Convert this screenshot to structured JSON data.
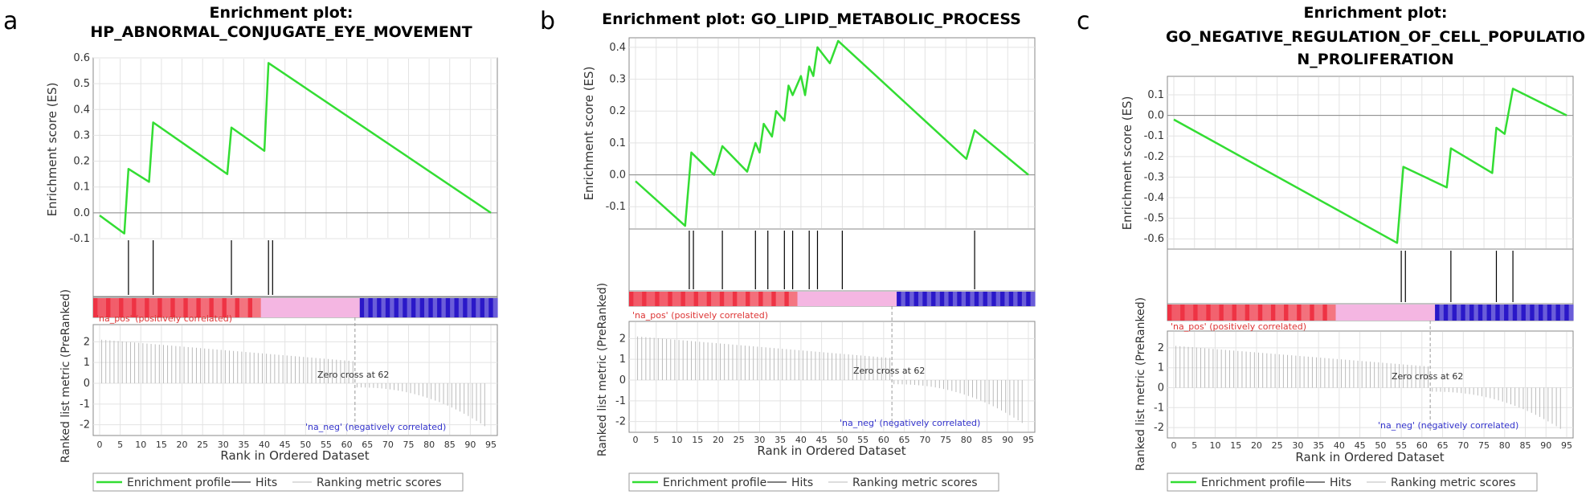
{
  "figure": {
    "x_axis_label": "Rank in Ordered Dataset",
    "es_axis_label": "Enrichment score (ES)",
    "metric_axis_label": "Ranked list metric (PreRanked)",
    "pos_label": "'na_pos' (positively correlated)",
    "neg_label": "'na_neg' (negatively correlated)",
    "legend_profile": "Enrichment profile",
    "legend_hits": "Hits",
    "legend_metric": "Ranking metric scores",
    "colors": {
      "profile": "#33dd33",
      "hits": "#000000",
      "metric": "#bbbbbb",
      "pos": "#ee3344",
      "mid": "#f4b6e2",
      "neg": "#2a18c8",
      "grid": "#e3e3e3"
    }
  },
  "chart_data": [
    {
      "type": "line",
      "panel_label": "a",
      "title_line1": "Enrichment plot:",
      "title_line2": "HP_ABNORMAL_CONJUGATE_EYE_MOVEMENT",
      "zero_cross_text": "Zero cross at 62",
      "zero_cross": 62,
      "n_genes": 94,
      "x_ticks": [
        "0",
        "5",
        "10",
        "15",
        "20",
        "25",
        "30",
        "35",
        "40",
        "45",
        "50",
        "55",
        "60",
        "65",
        "70",
        "75",
        "80",
        "85",
        "90",
        "95"
      ],
      "es_ticks": [
        "-0.1",
        "0.0",
        "0.1",
        "0.2",
        "0.3",
        "0.4",
        "0.5",
        "0.6"
      ],
      "es_tick_values": [
        -0.1,
        0.0,
        0.1,
        0.2,
        0.3,
        0.4,
        0.5,
        0.6
      ],
      "es_range": [
        -0.1,
        0.6
      ],
      "metric_ticks": [
        "2",
        "1",
        "0",
        "-1",
        "-2"
      ],
      "metric_tick_values": [
        2,
        1,
        0,
        -1,
        -2
      ],
      "hits": [
        7,
        13,
        32,
        41,
        42
      ],
      "es_profile": {
        "x": [
          0,
          6,
          7,
          12,
          13,
          31,
          32,
          40,
          41,
          95
        ],
        "y": [
          -0.01,
          -0.08,
          0.17,
          0.12,
          0.35,
          0.15,
          0.33,
          0.24,
          0.58,
          0.0
        ]
      }
    },
    {
      "type": "line",
      "panel_label": "b",
      "title_line1": "Enrichment plot: GO_LIPID_METABOLIC_PROCESS",
      "title_line2": "",
      "zero_cross_text": "Zero cross at 62",
      "zero_cross": 62,
      "n_genes": 94,
      "x_ticks": [
        "0",
        "5",
        "10",
        "15",
        "20",
        "25",
        "30",
        "35",
        "40",
        "45",
        "50",
        "55",
        "60",
        "65",
        "70",
        "75",
        "80",
        "85",
        "90",
        "95"
      ],
      "es_ticks": [
        "-0.1",
        "0.0",
        "0.1",
        "0.2",
        "0.3",
        "0.4"
      ],
      "es_tick_values": [
        -0.1,
        0.0,
        0.1,
        0.2,
        0.3,
        0.4
      ],
      "es_range": [
        -0.17,
        0.43
      ],
      "metric_ticks": [
        "2",
        "1",
        "0",
        "-1",
        "-2"
      ],
      "metric_tick_values": [
        2,
        1,
        0,
        -1,
        -2
      ],
      "hits": [
        13,
        14,
        21,
        29,
        32,
        36,
        38,
        42,
        44,
        50,
        82
      ],
      "es_profile": {
        "x": [
          0,
          12,
          13.5,
          19,
          21,
          27,
          29,
          30,
          31,
          33,
          34,
          36,
          37,
          38,
          40,
          41,
          42,
          43,
          44,
          47,
          49,
          80,
          82,
          95
        ],
        "y": [
          -0.02,
          -0.16,
          0.07,
          0.0,
          0.09,
          0.01,
          0.1,
          0.07,
          0.16,
          0.12,
          0.2,
          0.17,
          0.28,
          0.25,
          0.31,
          0.25,
          0.34,
          0.31,
          0.4,
          0.35,
          0.42,
          0.05,
          0.14,
          0.0
        ]
      }
    },
    {
      "type": "line",
      "panel_label": "c",
      "title_line1": "Enrichment plot:",
      "title_line2": "GO_NEGATIVE_REGULATION_OF_CELL_POPULATIO",
      "title_line3": "N_PROLIFERATION",
      "zero_cross_text": "Zero cross at 62",
      "zero_cross": 62,
      "n_genes": 94,
      "x_ticks": [
        "0",
        "5",
        "10",
        "15",
        "20",
        "25",
        "30",
        "35",
        "40",
        "45",
        "50",
        "55",
        "60",
        "65",
        "70",
        "75",
        "80",
        "85",
        "90",
        "95"
      ],
      "es_ticks": [
        "0.1",
        "0.0",
        "-0.1",
        "-0.2",
        "-0.3",
        "-0.4",
        "-0.5",
        "-0.6"
      ],
      "es_tick_values": [
        0.1,
        0.0,
        -0.1,
        -0.2,
        -0.3,
        -0.4,
        -0.5,
        -0.6
      ],
      "es_range": [
        -0.65,
        0.19
      ],
      "metric_ticks": [
        "2",
        "1",
        "0",
        "-1",
        "-2"
      ],
      "metric_tick_values": [
        2,
        1,
        0,
        -1,
        -2
      ],
      "hits": [
        55,
        56,
        67,
        78,
        82
      ],
      "es_profile": {
        "x": [
          0,
          54,
          55.5,
          66,
          67,
          77,
          78,
          80,
          82,
          95
        ],
        "y": [
          -0.02,
          -0.62,
          -0.25,
          -0.35,
          -0.16,
          -0.28,
          -0.06,
          -0.09,
          0.13,
          0.0
        ]
      }
    }
  ]
}
